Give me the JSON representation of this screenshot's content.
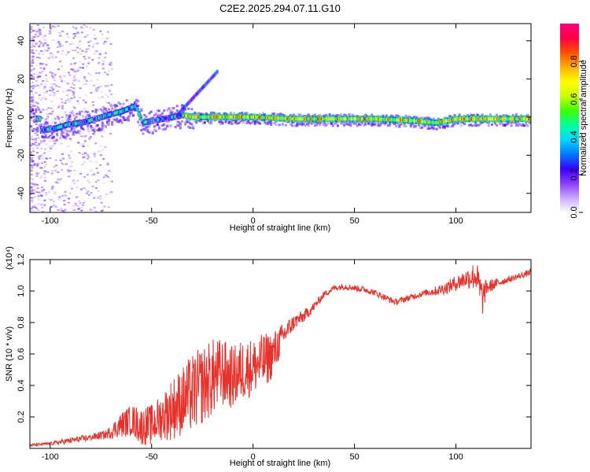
{
  "title": "C2E2.2025.294.07.11.G10",
  "chart_data": [
    {
      "type": "heatmap",
      "xlabel": "Height of straight line (km)",
      "ylabel": "Frequency (Hz)",
      "xlim": [
        -110,
        137
      ],
      "ylim": [
        -50,
        49
      ],
      "xticks": [
        -100,
        -50,
        0,
        50,
        100
      ],
      "yticks": [
        -40,
        -20,
        0,
        20,
        40
      ],
      "colorbar": {
        "label": "Normalized spectral amplitude",
        "range": [
          0,
          1
        ],
        "ticks": [
          "0.0",
          "0.2",
          "0.4",
          "0.6",
          "0.8"
        ],
        "colors": [
          "#ffffff",
          "#c9a8ff",
          "#8b3dff",
          "#3a00ff",
          "#0078ff",
          "#00d8ff",
          "#00ff9c",
          "#3cff00",
          "#c8ff00",
          "#ffff00",
          "#ffb000",
          "#ff5000",
          "#ff0044",
          "#ff007f"
        ]
      },
      "ridge": [
        {
          "x": -105,
          "y": -7
        },
        {
          "x": -98,
          "y": -6
        },
        {
          "x": -92,
          "y": -4
        },
        {
          "x": -85,
          "y": -3
        },
        {
          "x": -78,
          "y": -1
        },
        {
          "x": -72,
          "y": 1
        },
        {
          "x": -65,
          "y": 3
        },
        {
          "x": -58,
          "y": 6
        },
        {
          "x": -55,
          "y": -3
        },
        {
          "x": -50,
          "y": -2
        },
        {
          "x": -45,
          "y": -1
        },
        {
          "x": -40,
          "y": 0
        },
        {
          "x": -35,
          "y": 1
        },
        {
          "x": -30,
          "y": 0
        },
        {
          "x": -20,
          "y": 0
        },
        {
          "x": -10,
          "y": 0
        },
        {
          "x": 0,
          "y": 0
        },
        {
          "x": 20,
          "y": -1
        },
        {
          "x": 40,
          "y": -1
        },
        {
          "x": 60,
          "y": -1
        },
        {
          "x": 80,
          "y": -2
        },
        {
          "x": 90,
          "y": -3
        },
        {
          "x": 100,
          "y": -1
        },
        {
          "x": 115,
          "y": -1
        },
        {
          "x": 135,
          "y": -1
        }
      ]
    },
    {
      "type": "line",
      "xlabel": "Height of straight line (km)",
      "ylabel": "SNR (10 * v/v)",
      "y_multiplier": "(x10⁴)",
      "xlim": [
        -110,
        137
      ],
      "ylim": [
        0,
        1.2
      ],
      "xticks": [
        -100,
        -50,
        0,
        50,
        100
      ],
      "yticks": [
        "0.2",
        "0.4",
        "0.6",
        "0.8",
        "1.0",
        "1.2"
      ],
      "series": [
        {
          "color": "#e8312a",
          "x": [
            -110,
            -100,
            -90,
            -80,
            -72,
            -65,
            -60,
            -55,
            -50,
            -45,
            -40,
            -35,
            -30,
            -25,
            -20,
            -15,
            -10,
            -5,
            0,
            5,
            10,
            15,
            20,
            25,
            30,
            35,
            40,
            45,
            50,
            55,
            60,
            65,
            70,
            75,
            80,
            85,
            90,
            95,
            100,
            105,
            110,
            113,
            115,
            120,
            125,
            130,
            137
          ],
          "y": [
            0.02,
            0.03,
            0.05,
            0.07,
            0.09,
            0.15,
            0.18,
            0.14,
            0.15,
            0.2,
            0.25,
            0.3,
            0.35,
            0.4,
            0.45,
            0.48,
            0.45,
            0.5,
            0.52,
            0.55,
            0.6,
            0.72,
            0.8,
            0.84,
            0.9,
            0.98,
            1.02,
            1.03,
            1.02,
            1.01,
            0.99,
            0.96,
            0.93,
            0.95,
            0.97,
            0.99,
            1.0,
            1.02,
            1.05,
            1.08,
            1.1,
            0.95,
            1.02,
            1.05,
            1.07,
            1.09,
            1.12
          ],
          "noise_amplitude": [
            0.01,
            0.01,
            0.02,
            0.02,
            0.03,
            0.08,
            0.1,
            0.12,
            0.13,
            0.15,
            0.2,
            0.22,
            0.25,
            0.25,
            0.25,
            0.22,
            0.2,
            0.2,
            0.18,
            0.18,
            0.15,
            0.08,
            0.05,
            0.04,
            0.03,
            0.02,
            0.02,
            0.02,
            0.02,
            0.02,
            0.02,
            0.02,
            0.02,
            0.02,
            0.02,
            0.02,
            0.03,
            0.04,
            0.05,
            0.06,
            0.1,
            0.12,
            0.05,
            0.03,
            0.02,
            0.02,
            0.02
          ]
        }
      ]
    }
  ]
}
